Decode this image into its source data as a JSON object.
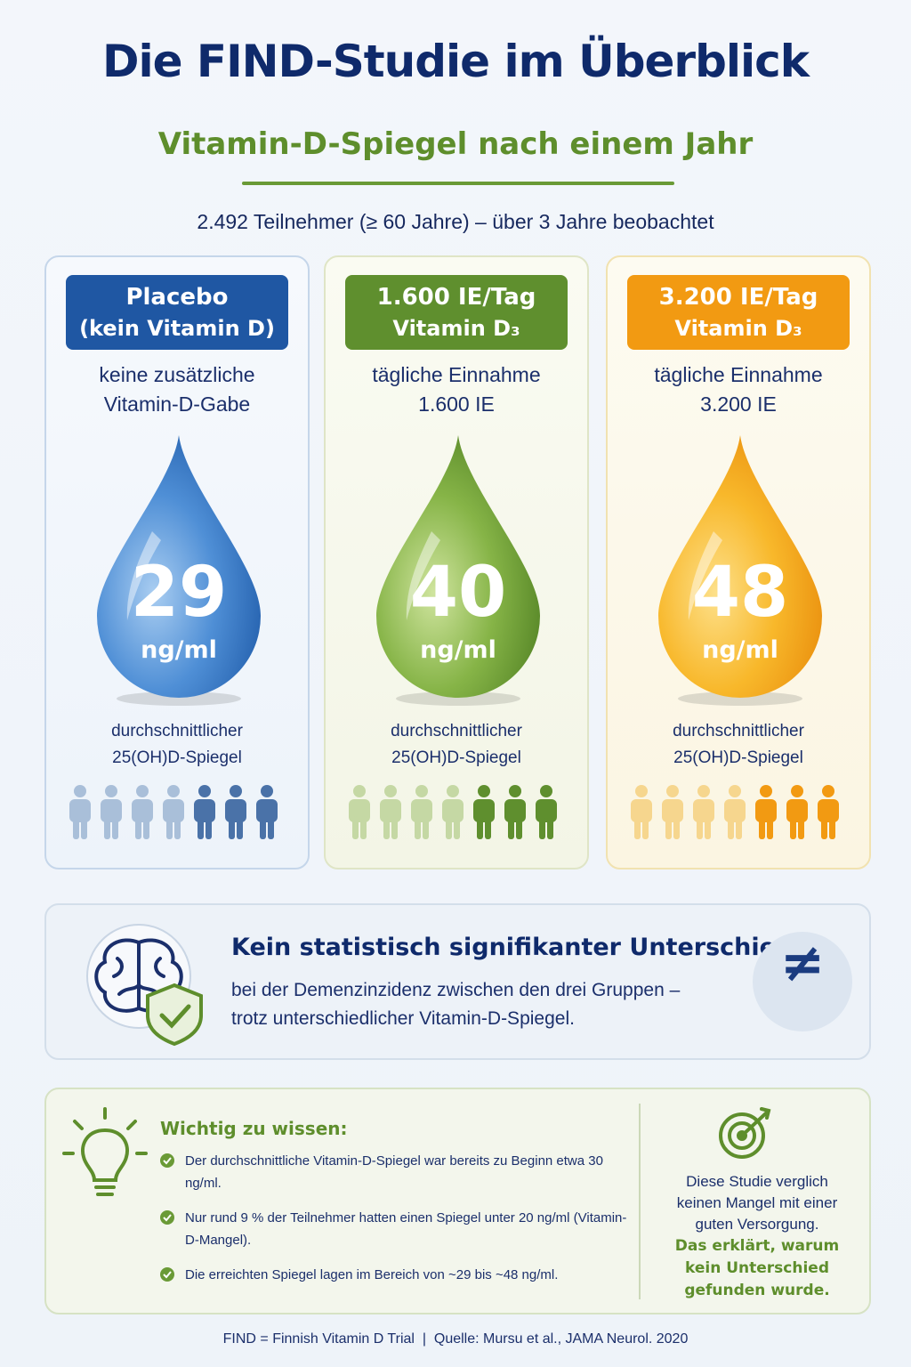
{
  "header": {
    "title": "Die FIND-Studie im Überblick",
    "subtitle": "Vitamin-D-Spiegel nach einem Jahr",
    "participants": "2.492 Teilnehmer (≥ 60 Jahre) – über 3 Jahre beobachtet"
  },
  "groups": [
    {
      "label": [
        "Placebo",
        "(kein Vitamin D)"
      ],
      "description": [
        "keine zusätzliche",
        "Vitamin-D-Gabe"
      ],
      "value": "29",
      "unit": "ng/ml",
      "level_label": [
        "durchschnittlicher",
        "25(OH)D-Spiegel"
      ]
    },
    {
      "label": [
        "1.600 IE/Tag",
        "Vitamin D₃"
      ],
      "description": [
        "tägliche Einnahme",
        "1.600 IE"
      ],
      "value": "40",
      "unit": "ng/ml",
      "level_label": [
        "durchschnittlicher",
        "25(OH)D-Spiegel"
      ]
    },
    {
      "label": [
        "3.200 IE/Tag",
        "Vitamin D₃"
      ],
      "description": [
        "tägliche Einnahme",
        "3.200 IE"
      ],
      "value": "48",
      "unit": "ng/ml",
      "level_label": [
        "durchschnittlicher",
        "25(OH)D-Spiegel"
      ]
    }
  ],
  "finding": {
    "title": "Kein statistisch signifikanter Unterschied",
    "lines": [
      "bei der Demenzinzidenz zwischen den drei Gruppen –",
      "trotz unterschiedlicher Vitamin-D-Spiegel."
    ],
    "symbol": "≠"
  },
  "notes": {
    "heading": "Wichtig zu wissen:",
    "items": [
      "Der durchschnittliche Vitamin-D-Spiegel war bereits zu Beginn etwa 30 ng/ml.",
      "Nur rund 9 % der Teilnehmer hatten einen Spiegel unter 20 ng/ml (Vitamin-D-Mangel).",
      "Die erreichten Spiegel lagen im Bereich von ~29 bis ~48 ng/ml."
    ],
    "side_text": "Diese Studie verglich keinen Mangel mit einer guten Versorgung.",
    "side_emphasis": "Das erklärt, warum kein Unterschied gefunden wurde."
  },
  "footer": "FIND = Finnish Vitamin D Trial  |  Quelle: Mursu et al., JAMA Neurol. 2020"
}
